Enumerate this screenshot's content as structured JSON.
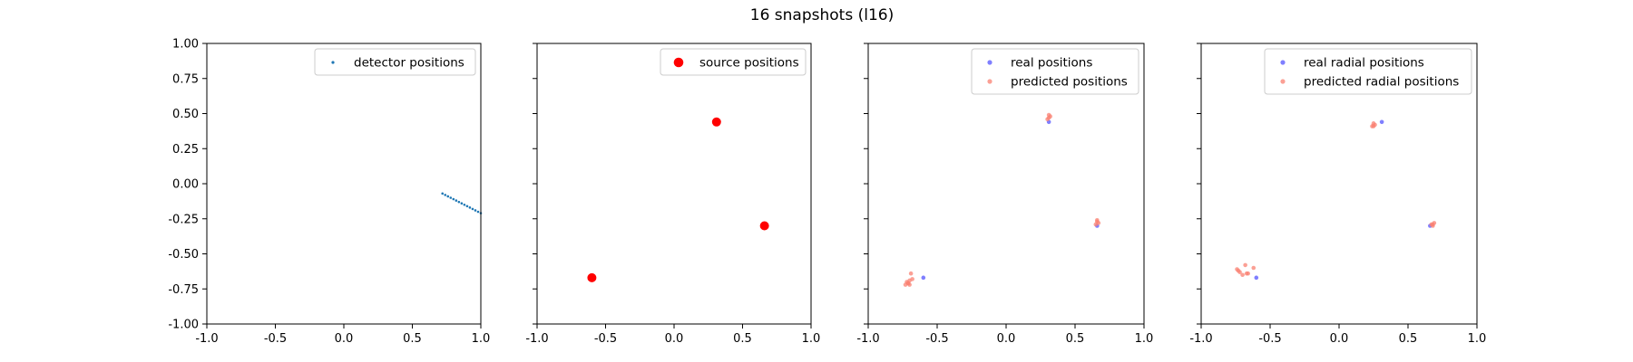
{
  "figure": {
    "title": "16 snapshots (l16)"
  },
  "chart_data": [
    {
      "type": "scatter",
      "xlim": [
        -1.0,
        1.0
      ],
      "ylim": [
        -1.0,
        1.0
      ],
      "xticks": [
        "-1.0",
        "-0.5",
        "0.0",
        "0.5",
        "1.0"
      ],
      "yticks": [
        "1.00",
        "0.75",
        "0.50",
        "0.25",
        "0.00",
        "-0.25",
        "-0.50",
        "-0.75",
        "-1.00"
      ],
      "show_ytick_labels": true,
      "legend_position": "top-right",
      "series": [
        {
          "name": "detector positions",
          "color": "#1f77b4",
          "marker_size": 1.3,
          "opacity": 1,
          "x": [
            0.72,
            0.74,
            0.76,
            0.78,
            0.8,
            0.82,
            0.84,
            0.86,
            0.88,
            0.9,
            0.92,
            0.94,
            0.96,
            0.98,
            1.0
          ],
          "y": [
            -0.07,
            -0.08,
            -0.09,
            -0.1,
            -0.11,
            -0.12,
            -0.13,
            -0.14,
            -0.15,
            -0.16,
            -0.17,
            -0.18,
            -0.19,
            -0.2,
            -0.21
          ]
        }
      ]
    },
    {
      "type": "scatter",
      "xlim": [
        -1.0,
        1.0
      ],
      "ylim": [
        -1.0,
        1.0
      ],
      "xticks": [
        "-1.0",
        "-0.5",
        "0.0",
        "0.5",
        "1.0"
      ],
      "show_ytick_labels": false,
      "legend_position": "top-right",
      "series": [
        {
          "name": "source positions",
          "color": "#ff0000",
          "marker_size": 5,
          "opacity": 1,
          "x": [
            0.31,
            0.66,
            -0.6
          ],
          "y": [
            0.44,
            -0.3,
            -0.67
          ]
        }
      ]
    },
    {
      "type": "scatter",
      "xlim": [
        -1.0,
        1.0
      ],
      "ylim": [
        -1.0,
        1.0
      ],
      "xticks": [
        "-1.0",
        "-0.5",
        "0.0",
        "0.5",
        "1.0"
      ],
      "show_ytick_labels": false,
      "legend_position": "top-right",
      "series": [
        {
          "name": "real positions",
          "color": "#0000ff",
          "marker_size": 2.3,
          "opacity": 0.5,
          "x": [
            0.31,
            0.66,
            -0.6
          ],
          "y": [
            0.44,
            -0.3,
            -0.67
          ]
        },
        {
          "name": "predicted positions",
          "color": "#fa8072",
          "marker_size": 2.3,
          "opacity": 0.75,
          "x": [
            0.31,
            0.32,
            0.3,
            0.31,
            0.66,
            0.67,
            0.65,
            0.66,
            -0.73,
            -0.71,
            -0.7,
            -0.69,
            -0.72,
            -0.7,
            -0.68,
            -0.71
          ],
          "y": [
            0.47,
            0.48,
            0.46,
            0.49,
            -0.27,
            -0.28,
            -0.29,
            -0.26,
            -0.72,
            -0.71,
            -0.72,
            -0.64,
            -0.7,
            -0.69,
            -0.68,
            -0.71
          ]
        }
      ]
    },
    {
      "type": "scatter",
      "xlim": [
        -1.0,
        1.0
      ],
      "ylim": [
        -1.0,
        1.0
      ],
      "xticks": [
        "-1.0",
        "-0.5",
        "0.0",
        "0.5",
        "1.0"
      ],
      "show_ytick_labels": false,
      "legend_position": "top-right",
      "series": [
        {
          "name": "real radial positions",
          "color": "#0000ff",
          "marker_size": 2.3,
          "opacity": 0.5,
          "x": [
            0.31,
            0.66,
            -0.6
          ],
          "y": [
            0.44,
            -0.3,
            -0.67
          ]
        },
        {
          "name": "predicted radial positions",
          "color": "#fa8072",
          "marker_size": 2.3,
          "opacity": 0.75,
          "x": [
            0.25,
            0.26,
            0.24,
            0.25,
            0.68,
            0.69,
            0.67,
            0.68,
            -0.74,
            -0.72,
            -0.68,
            -0.66,
            -0.62,
            -0.7,
            -0.73,
            -0.67
          ],
          "y": [
            0.41,
            0.42,
            0.41,
            0.43,
            -0.29,
            -0.28,
            -0.29,
            -0.3,
            -0.61,
            -0.63,
            -0.58,
            -0.64,
            -0.6,
            -0.65,
            -0.62,
            -0.64
          ]
        }
      ]
    }
  ]
}
